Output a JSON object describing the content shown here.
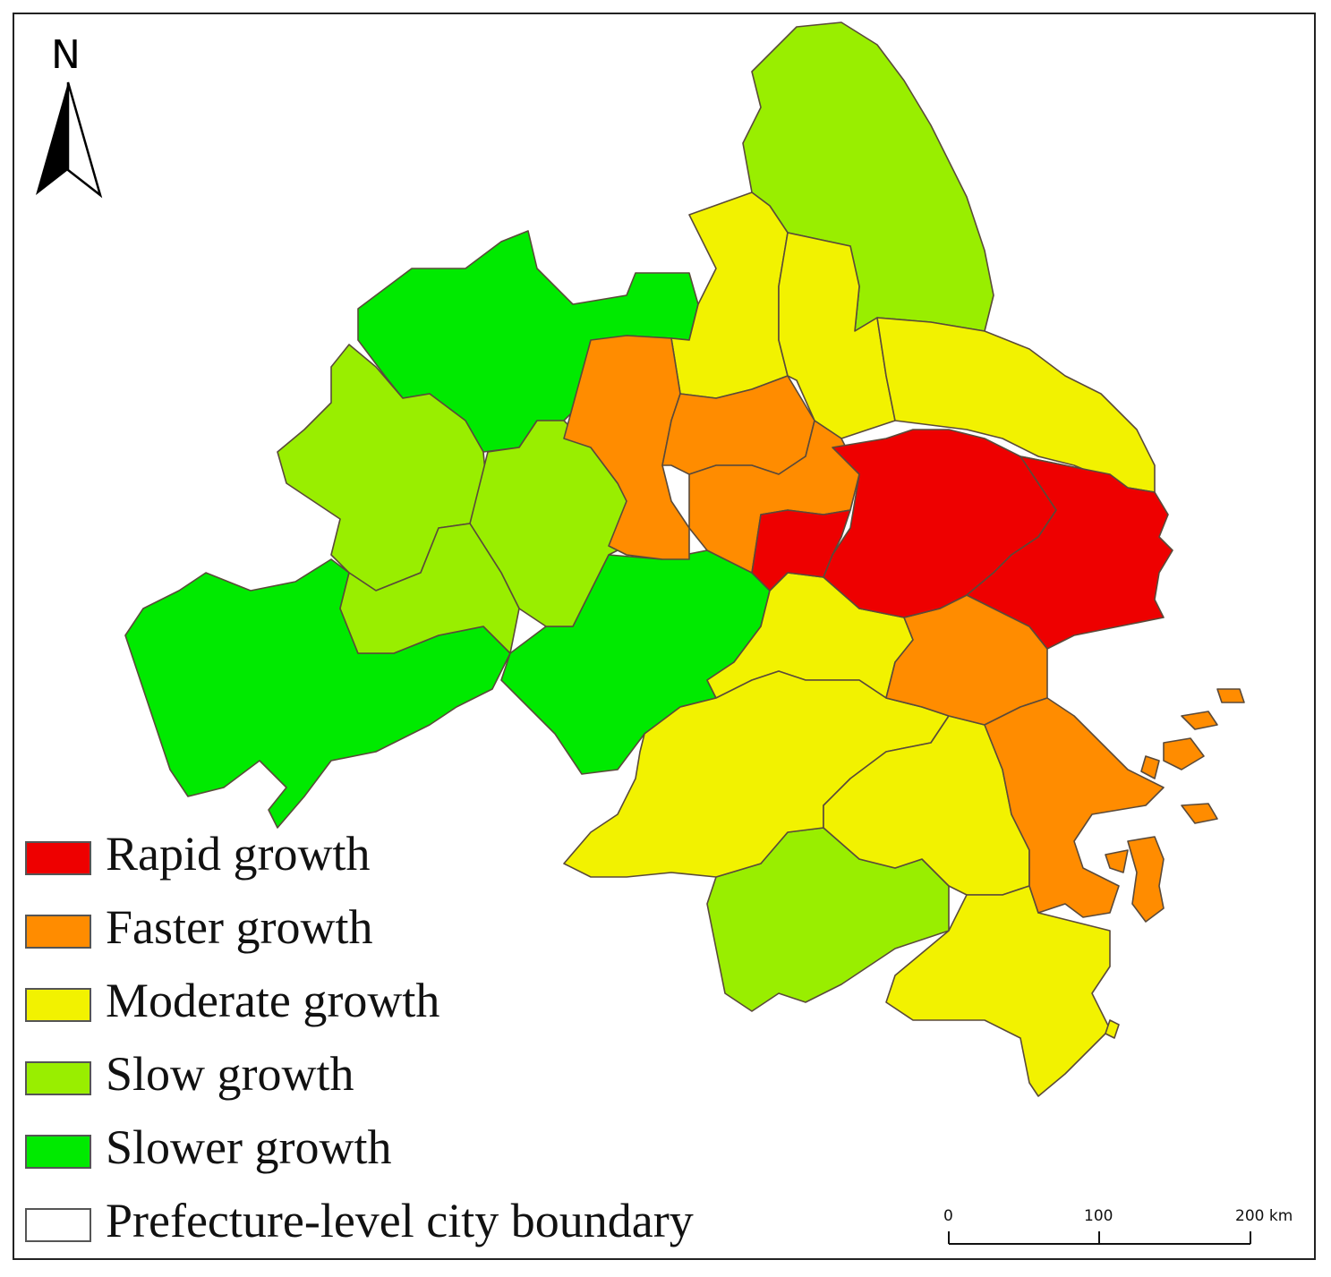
{
  "north_arrow": {
    "label": "N"
  },
  "legend": [
    {
      "id": "rapid",
      "label": "Rapid growth",
      "color": "#ee0000"
    },
    {
      "id": "faster",
      "label": "Faster growth",
      "color": "#ff8c00"
    },
    {
      "id": "moderate",
      "label": "Moderate growth",
      "color": "#f2f200"
    },
    {
      "id": "slow",
      "label": "Slow growth",
      "color": "#99ee00"
    },
    {
      "id": "slower",
      "label": "Slower growth",
      "color": "#00ea00"
    },
    {
      "id": "boundary",
      "label": "Prefecture-level city boundary",
      "color": "#ffffff"
    }
  ],
  "scale_bar": {
    "ticks": [
      "0",
      "100",
      "200 km"
    ]
  },
  "colors": {
    "boundary_stroke": "#5a4a3a",
    "frame": "#222222"
  }
}
